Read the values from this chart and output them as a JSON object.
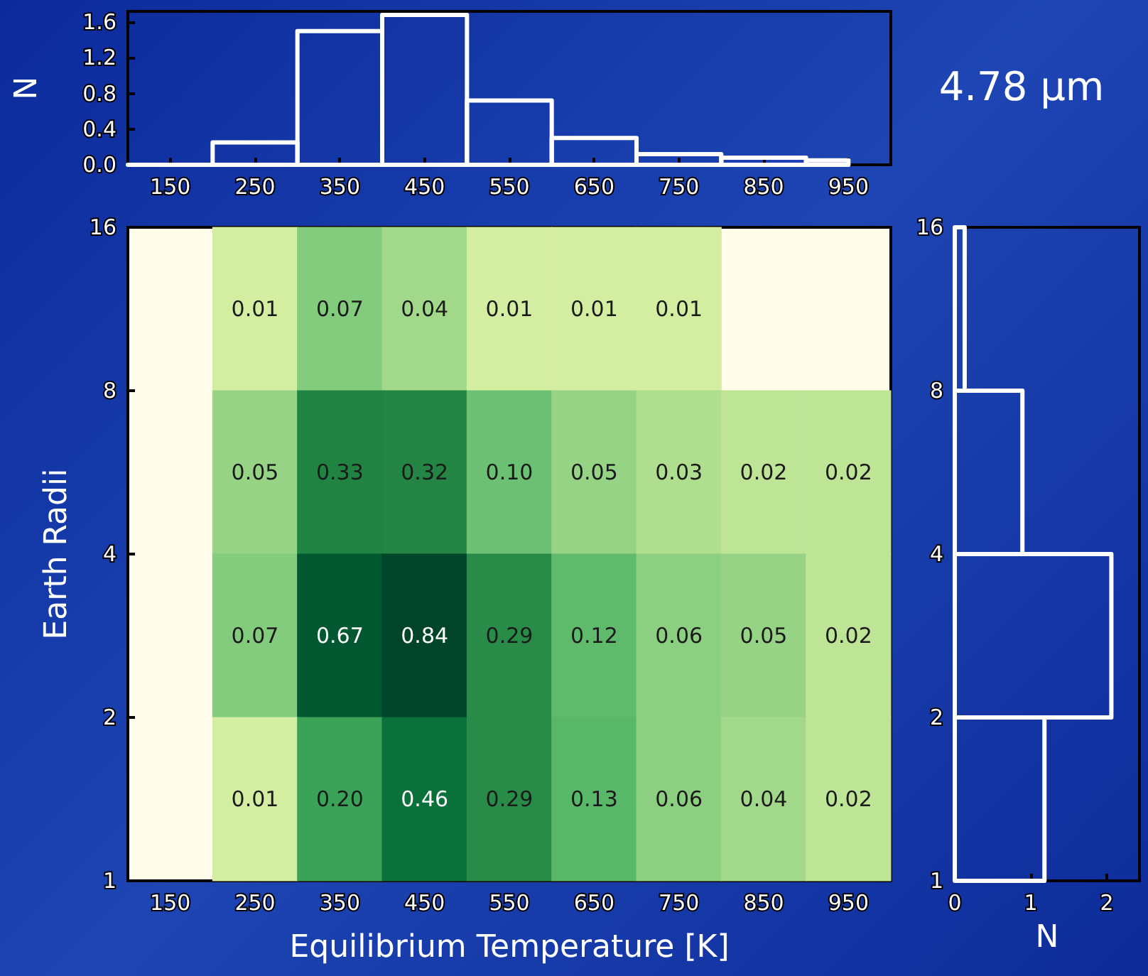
{
  "chart_data": [
    {
      "type": "histogram",
      "ylabel": "N",
      "color": "#ffffff",
      "bins": [
        100,
        200,
        300,
        400,
        500,
        600,
        700,
        800,
        900,
        950
      ],
      "values": [
        0,
        0.25,
        1.5,
        1.68,
        0.72,
        0.3,
        0.12,
        0.08,
        0.05
      ],
      "xlim": [
        100,
        1000
      ],
      "xticks": [
        150,
        250,
        350,
        450,
        550,
        650,
        750,
        850,
        950
      ],
      "ylim": [
        0,
        1.72
      ],
      "yticks": [
        {
          "value": 0,
          "label": "0.0"
        },
        {
          "value": 0.4,
          "label": "0.4"
        },
        {
          "value": 0.8,
          "label": "0.8"
        },
        {
          "value": 1.2,
          "label": "1.2"
        },
        {
          "value": 1.6,
          "label": "1.6"
        }
      ],
      "grid": false
    },
    {
      "type": "heatmap",
      "xlabel": "Equilibrium Temperature [K]",
      "ylabel": "Earth Radii",
      "categories": [
        "150",
        "250",
        "350",
        "450",
        "550",
        "650",
        "750",
        "850",
        "950"
      ],
      "ylim": [
        1,
        16
      ],
      "yticks": [
        1,
        2,
        4,
        8,
        16
      ],
      "log": "y",
      "data_labels": true,
      "cells": [
        [
          null,
          0.01,
          0.07,
          0.04,
          0.01,
          0.01,
          0.01,
          null,
          null
        ],
        [
          null,
          0.05,
          0.33,
          0.32,
          0.1,
          0.05,
          0.03,
          0.02,
          0.02
        ],
        [
          null,
          0.07,
          0.67,
          0.84,
          0.29,
          0.12,
          0.06,
          0.05,
          0.02
        ],
        [
          null,
          0.01,
          0.2,
          0.46,
          0.29,
          0.13,
          0.06,
          0.04,
          0.02
        ]
      ],
      "cell_labels": [
        [
          null,
          "0.01",
          "0.07",
          "0.04",
          "0.01",
          "0.01",
          "0.01",
          null,
          null
        ],
        [
          null,
          "0.05",
          "0.33",
          "0.32",
          "0.10",
          "0.05",
          "0.03",
          "0.02",
          "0.02"
        ],
        [
          null,
          "0.07",
          "0.67",
          "0.84",
          "0.29",
          "0.12",
          "0.06",
          "0.05",
          "0.02"
        ],
        [
          null,
          "0.01",
          "0.20",
          "0.46",
          "0.29",
          "0.13",
          "0.06",
          "0.04",
          "0.02"
        ]
      ]
    },
    {
      "type": "histogram",
      "orientation": "horizontal",
      "title": "4.78 μm",
      "xlabel": "N",
      "color": "#ffffff",
      "bins": [
        1,
        2,
        4,
        8,
        16
      ],
      "values": [
        1.18,
        2.06,
        0.89,
        0.13
      ],
      "xlim": [
        0,
        2.43
      ],
      "xticks": [
        0,
        1,
        2
      ],
      "ylim": [
        1,
        16
      ],
      "yticks": [
        1,
        2,
        4,
        8,
        16
      ],
      "log": "y",
      "grid": false
    }
  ]
}
